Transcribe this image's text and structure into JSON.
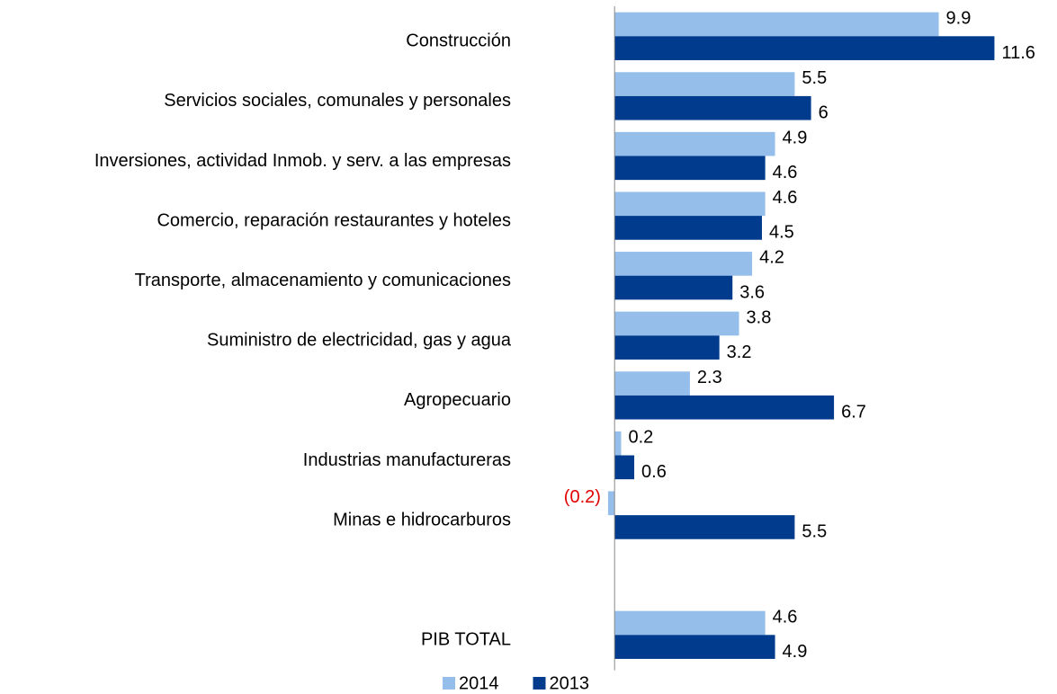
{
  "chart_data": {
    "type": "bar",
    "orientation": "horizontal",
    "categories": [
      "Construcción",
      "Servicios sociales, comunales y personales",
      "Inversiones, actividad Inmob. y serv. a las empresas",
      "Comercio, reparación restaurantes y hoteles",
      "Transporte, almacenamiento y comunicaciones",
      "Suministro de electricidad, gas y agua",
      "Agropecuario",
      "Industrias manufactureras",
      "Minas e hidrocarburos",
      null,
      "PIB TOTAL"
    ],
    "series": [
      {
        "name": "2014",
        "color": "#95bfea",
        "values": [
          9.9,
          5.5,
          4.9,
          4.6,
          4.2,
          3.8,
          2.3,
          0.2,
          -0.2,
          null,
          4.6
        ],
        "value_labels": [
          "9.9",
          "5.5",
          "4.9",
          "4.6",
          "4.2",
          "3.8",
          "2.3",
          "0.2",
          "(0.2)",
          null,
          "4.6"
        ]
      },
      {
        "name": "2013",
        "color": "#003b8e",
        "values": [
          11.6,
          6,
          4.6,
          4.5,
          3.6,
          3.2,
          6.7,
          0.6,
          5.5,
          null,
          4.9
        ]
      }
    ],
    "negative_label_color": "#e00000",
    "xlim": [
      -3,
      12
    ],
    "legend": "bottom"
  }
}
